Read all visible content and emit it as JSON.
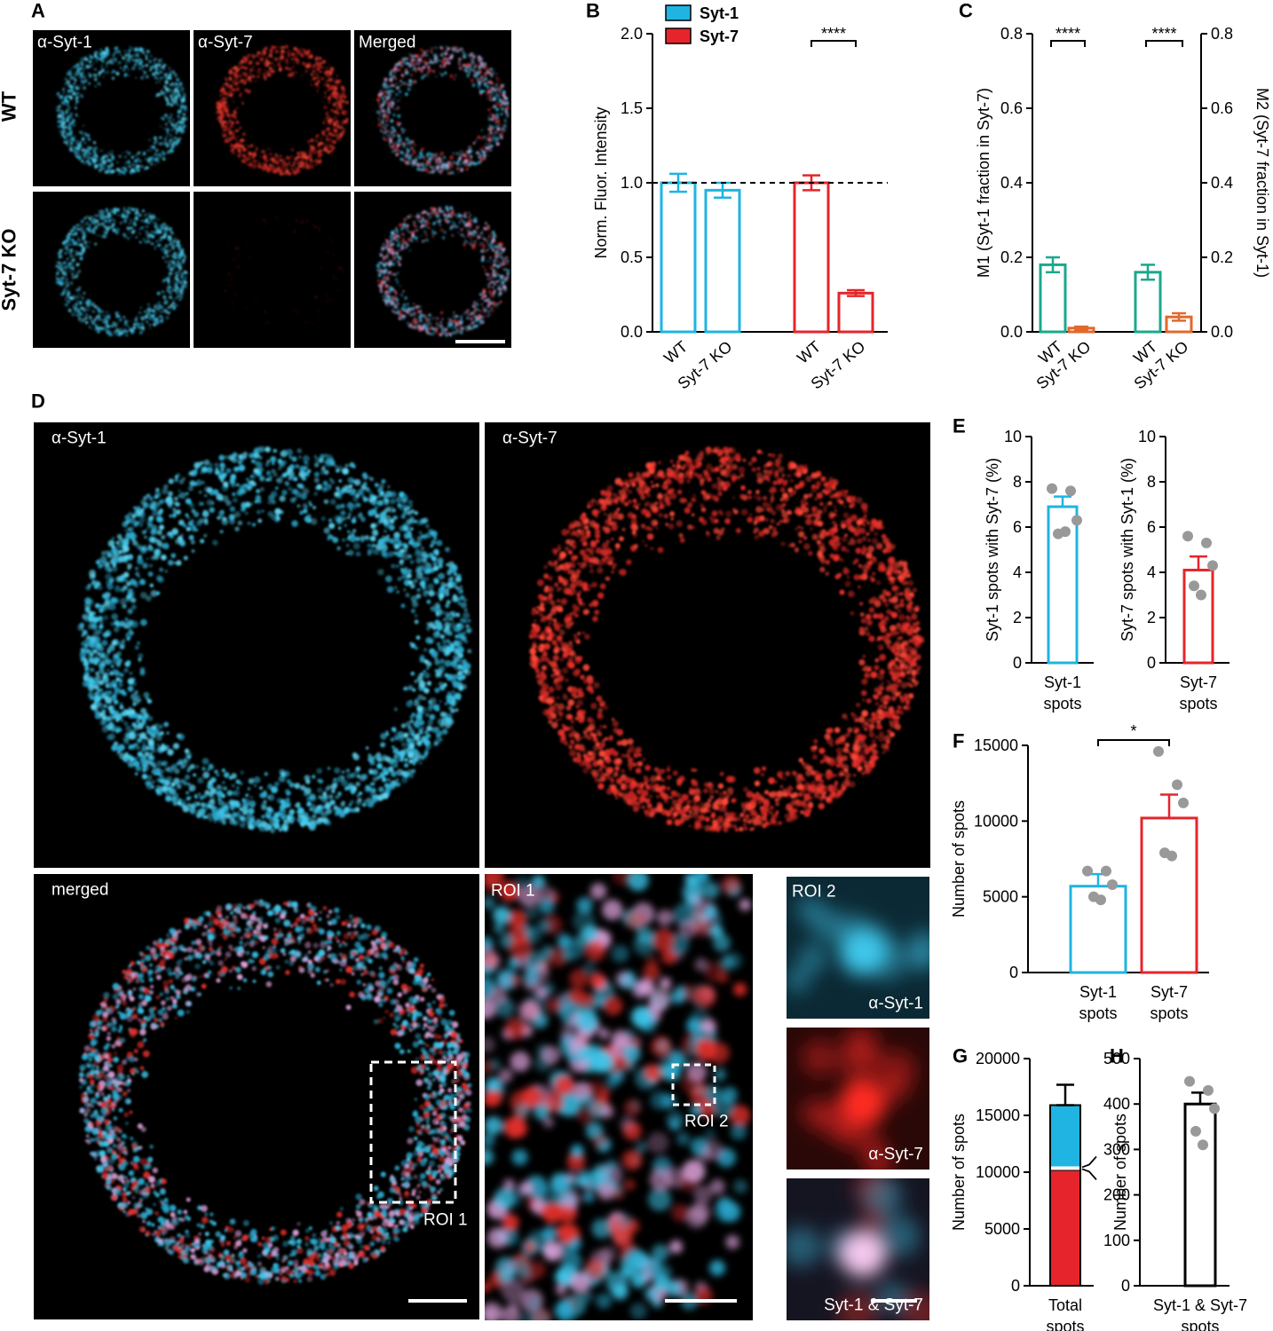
{
  "panel_a": {
    "label": "A",
    "columns": [
      "α-Syt-1",
      "α-Syt-7",
      "Merged"
    ],
    "rows": [
      "WT",
      "Syt-7 KO"
    ]
  },
  "panel_d": {
    "label": "D",
    "syt1": "α-Syt-1",
    "syt7": "α-Syt-7",
    "merged": "merged",
    "roi1_box": "ROI 1",
    "roi1": "ROI 1",
    "roi2_box": "ROI 2",
    "roi2": "ROI 2",
    "roi2_syt1": "α-Syt-1",
    "roi2_syt7": "α-Syt-7",
    "roi2_both": "Syt-1 & Syt-7"
  },
  "chart_data": [
    {
      "type": "grouped_bar",
      "label": "B",
      "ylabel": "Norm. Fluor. Intensity",
      "groups": [
        [
          "WT",
          "Syt-7 KO"
        ],
        [
          "WT",
          "Syt-7 KO"
        ]
      ],
      "series": [
        {
          "name": "Syt-1",
          "color": "#1fb4e2",
          "values": [
            1.0,
            0.95
          ],
          "errors": [
            0.06,
            0.05
          ]
        },
        {
          "name": "Syt-7",
          "color": "#e5252b",
          "values": [
            1.0,
            0.26
          ],
          "errors": [
            0.05,
            0.02
          ]
        }
      ],
      "ylim": [
        0,
        2
      ],
      "yticks": [
        {
          "value": 0,
          "label": "0.0"
        },
        {
          "value": 0.5,
          "label": "0.5"
        },
        {
          "value": 1,
          "label": "1.0"
        },
        {
          "value": 1.5,
          "label": "1.5"
        },
        {
          "value": 2,
          "label": "2.0"
        }
      ],
      "reference_line": 1.0,
      "annotation": "****"
    },
    {
      "type": "dual_axis_bar",
      "label": "C",
      "ylabel": "M1 (Syt-1 fraction in Syt-7)",
      "y2label": "M2 (Syt-7 fraction in Syt-1)",
      "groups": [
        [
          "WT",
          "Syt-7 KO"
        ],
        [
          "WT",
          "Syt-7 KO"
        ]
      ],
      "colors": [
        "#1aa88e",
        "#e2682c"
      ],
      "series": [
        {
          "axis": "y",
          "values": [
            0.18,
            0.01
          ],
          "errors": [
            0.02,
            0.004
          ]
        },
        {
          "axis": "y2",
          "values": [
            0.16,
            0.04
          ],
          "errors": [
            0.02,
            0.01
          ]
        }
      ],
      "ylim": [
        0,
        0.8
      ],
      "yticks": [
        {
          "value": 0,
          "label": "0.0"
        },
        {
          "value": 0.2,
          "label": "0.2"
        },
        {
          "value": 0.4,
          "label": "0.4"
        },
        {
          "value": 0.6,
          "label": "0.6"
        },
        {
          "value": 0.8,
          "label": "0.8"
        }
      ],
      "y2lim": [
        0,
        0.8
      ],
      "y2ticks": [
        {
          "value": 0,
          "label": "0.0"
        },
        {
          "value": 0.2,
          "label": "0.2"
        },
        {
          "value": 0.4,
          "label": "0.4"
        },
        {
          "value": 0.6,
          "label": "0.6"
        },
        {
          "value": 0.8,
          "label": "0.8"
        }
      ],
      "annotations": [
        "****",
        "****"
      ]
    },
    {
      "type": "bar",
      "label": "E",
      "ylabel": "Syt-1 spots with Syt-7 (%)",
      "categories": [
        [
          "Syt-1",
          "spots"
        ]
      ],
      "colors": [
        "#1fb4e2"
      ],
      "values": [
        6.9
      ],
      "errors": [
        0.45
      ],
      "points": [
        [
          7.7,
          7.6,
          6.3,
          5.7,
          5.8
        ]
      ],
      "ylim": [
        0,
        10
      ],
      "yticks": [
        0,
        2,
        4,
        6,
        8,
        10
      ]
    },
    {
      "type": "bar",
      "ylabel": "Syt-7 spots with Syt-1 (%)",
      "categories": [
        [
          "Syt-7",
          "spots"
        ]
      ],
      "colors": [
        "#e5252b"
      ],
      "values": [
        4.1
      ],
      "errors": [
        0.6
      ],
      "points": [
        [
          5.6,
          5.3,
          4.3,
          3.4,
          3.0
        ]
      ],
      "ylim": [
        0,
        10
      ],
      "yticks": [
        0,
        2,
        4,
        6,
        8,
        10
      ]
    },
    {
      "type": "bar",
      "label": "F",
      "ylabel": "Number of spots",
      "categories": [
        [
          "Syt-1",
          "spots"
        ],
        [
          "Syt-7",
          "spots"
        ]
      ],
      "colors": [
        "#1fb4e2",
        "#e5252b"
      ],
      "values": [
        5700,
        10200
      ],
      "errors": [
        800,
        1550
      ],
      "points": [
        [
          6700,
          6700,
          5800,
          5000,
          4800
        ],
        [
          14600,
          12400,
          11200,
          7900,
          7700
        ]
      ],
      "ylim": [
        0,
        15000
      ],
      "yticks": [
        0,
        5000,
        10000,
        15000
      ],
      "annotation": "*"
    },
    {
      "type": "stacked_bar",
      "label": "G",
      "ylabel": "Number of spots",
      "categories": [
        [
          "Total",
          "spots"
        ]
      ],
      "series": [
        {
          "color": "#e5252b",
          "values": [
            10200
          ]
        },
        {
          "color": "#1fb4e2",
          "values": [
            5700
          ]
        }
      ],
      "errors": [
        1800
      ],
      "ylim": [
        0,
        20000
      ],
      "yticks": [
        0,
        5000,
        10000,
        15000,
        20000
      ]
    },
    {
      "type": "bar",
      "label": "H",
      "ylabel": "Number of spots",
      "categories": [
        [
          "Syt-1 & Syt-7",
          "spots"
        ]
      ],
      "colors": [
        "#000000"
      ],
      "values": [
        400
      ],
      "errors": [
        25
      ],
      "points": [
        [
          450,
          430,
          390,
          340,
          310
        ]
      ],
      "ylim": [
        0,
        500
      ],
      "yticks": [
        0,
        100,
        200,
        300,
        400,
        500
      ]
    }
  ]
}
